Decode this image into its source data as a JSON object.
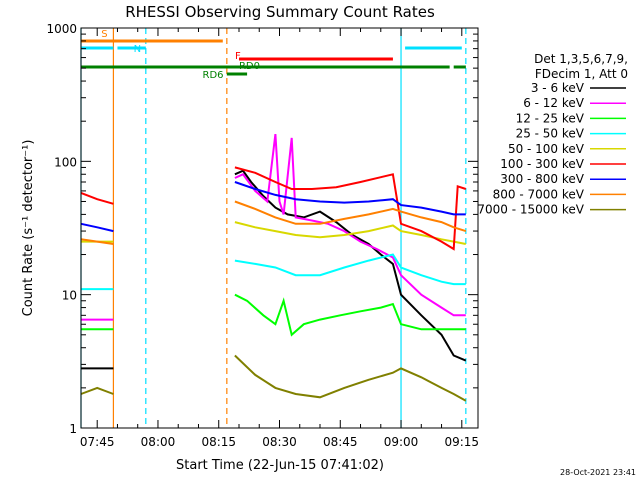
{
  "chart_data": {
    "type": "line",
    "title": "RHESSI Observing Summary Count Rates",
    "xlabel": "Start Time (22-Jun-15 07:41:02)",
    "ylabel": "Count Rate (s⁻¹ detector⁻¹)",
    "ylog": true,
    "ylim": [
      1,
      1000
    ],
    "xlim": [
      "07:41",
      "09:19"
    ],
    "x_ticks": [
      "07:45",
      "08:00",
      "08:15",
      "08:30",
      "08:45",
      "09:00",
      "09:15"
    ],
    "y_ticks": [
      "1",
      "10",
      "100",
      "1000"
    ],
    "legend_header": [
      "Det 1,3,5,6,7,9,",
      "FDecim 1, Att 0"
    ],
    "legend_position": "right",
    "timestamp": "28-Oct-2021 23:41",
    "flags": [
      {
        "label": "S",
        "color": "#ff8000",
        "start": "07:41",
        "end": "08:16"
      },
      {
        "label": "N",
        "color": "#00e0ff",
        "segments": [
          [
            "07:41",
            "07:49"
          ],
          [
            "07:50",
            "07:57"
          ],
          [
            "09:01",
            "09:15"
          ]
        ]
      },
      {
        "label": "F",
        "color": "#ff0000",
        "start": "08:20",
        "end": "08:58"
      },
      {
        "label": "RD0",
        "color": "#008000",
        "segments": [
          [
            "07:41",
            "09:00"
          ],
          [
            "09:00",
            "09:12"
          ],
          [
            "09:13",
            "09:16"
          ]
        ]
      },
      {
        "label": "RD6",
        "color": "#008000",
        "start": "08:17",
        "end": "08:22"
      }
    ],
    "vlines": [
      {
        "t": "07:41",
        "color": "#00e0ff",
        "style": "solid"
      },
      {
        "t": "07:49",
        "color": "#ff8000",
        "style": "solid"
      },
      {
        "t": "07:57",
        "color": "#00e0ff",
        "style": "dashed"
      },
      {
        "t": "08:17",
        "color": "#ff8000",
        "style": "dashed"
      },
      {
        "t": "09:00",
        "color": "#00e0ff",
        "style": "solid"
      },
      {
        "t": "09:16",
        "color": "#00e0ff",
        "style": "dashed"
      }
    ],
    "series": [
      {
        "name": "3 - 6 keV",
        "color": "#000000",
        "segments": [
          [
            [
              "07:41",
              2.8
            ],
            [
              "07:49",
              2.8
            ]
          ],
          [
            [
              "08:19",
              80
            ],
            [
              "08:21",
              85
            ],
            [
              "08:23",
              70
            ],
            [
              "08:26",
              55
            ],
            [
              "08:29",
              45
            ],
            [
              "08:32",
              40
            ],
            [
              "08:36",
              38
            ],
            [
              "08:40",
              42
            ],
            [
              "08:44",
              35
            ],
            [
              "08:48",
              28
            ],
            [
              "08:52",
              24
            ],
            [
              "08:55",
              20
            ],
            [
              "08:58",
              17
            ],
            [
              "09:00",
              10
            ],
            [
              "09:05",
              7
            ],
            [
              "09:10",
              5
            ],
            [
              "09:13",
              3.5
            ],
            [
              "09:16",
              3.2
            ]
          ]
        ]
      },
      {
        "name": "6 - 12 keV",
        "color": "#ff00ff",
        "segments": [
          [
            [
              "07:41",
              6.5
            ],
            [
              "07:49",
              6.5
            ]
          ],
          [
            [
              "08:19",
              75
            ],
            [
              "08:21",
              80
            ],
            [
              "08:24",
              60
            ],
            [
              "08:27",
              50
            ],
            [
              "08:29",
              160
            ],
            [
              "08:30",
              50
            ],
            [
              "08:31",
              40
            ],
            [
              "08:33",
              150
            ],
            [
              "08:34",
              38
            ],
            [
              "08:38",
              36
            ],
            [
              "08:42",
              34
            ],
            [
              "08:46",
              30
            ],
            [
              "08:50",
              25
            ],
            [
              "08:54",
              22
            ],
            [
              "08:58",
              19
            ],
            [
              "09:00",
              14
            ],
            [
              "09:05",
              10
            ],
            [
              "09:10",
              8
            ],
            [
              "09:13",
              7
            ],
            [
              "09:16",
              7
            ]
          ]
        ]
      },
      {
        "name": "12 - 25 keV",
        "color": "#00ff00",
        "segments": [
          [
            [
              "07:41",
              5.5
            ],
            [
              "07:49",
              5.5
            ]
          ],
          [
            [
              "08:19",
              10
            ],
            [
              "08:22",
              9
            ],
            [
              "08:26",
              7
            ],
            [
              "08:29",
              6
            ],
            [
              "08:31",
              9
            ],
            [
              "08:33",
              5
            ],
            [
              "08:36",
              6
            ],
            [
              "08:40",
              6.5
            ],
            [
              "08:45",
              7
            ],
            [
              "08:50",
              7.5
            ],
            [
              "08:55",
              8
            ],
            [
              "08:58",
              8.5
            ],
            [
              "09:00",
              6
            ],
            [
              "09:05",
              5.5
            ],
            [
              "09:10",
              5.5
            ],
            [
              "09:13",
              5.5
            ],
            [
              "09:16",
              5.5
            ]
          ]
        ]
      },
      {
        "name": "25 - 50 keV",
        "color": "#00ffff",
        "segments": [
          [
            [
              "07:41",
              11
            ],
            [
              "07:49",
              11
            ]
          ],
          [
            [
              "08:19",
              18
            ],
            [
              "08:24",
              17
            ],
            [
              "08:29",
              16
            ],
            [
              "08:34",
              14
            ],
            [
              "08:40",
              14
            ],
            [
              "08:46",
              16
            ],
            [
              "08:52",
              18
            ],
            [
              "08:58",
              20
            ],
            [
              "09:00",
              16
            ],
            [
              "09:05",
              14
            ],
            [
              "09:10",
              12.5
            ],
            [
              "09:13",
              12
            ],
            [
              "09:16",
              12
            ]
          ]
        ]
      },
      {
        "name": "50 - 100 keV",
        "color": "#d8d800",
        "segments": [
          [
            [
              "07:41",
              25
            ],
            [
              "07:49",
              25
            ]
          ],
          [
            [
              "08:19",
              35
            ],
            [
              "08:24",
              32
            ],
            [
              "08:29",
              30
            ],
            [
              "08:34",
              28
            ],
            [
              "08:40",
              27
            ],
            [
              "08:46",
              28
            ],
            [
              "08:52",
              30
            ],
            [
              "08:58",
              33
            ],
            [
              "09:00",
              30
            ],
            [
              "09:05",
              28
            ],
            [
              "09:10",
              26
            ],
            [
              "09:13",
              25
            ],
            [
              "09:16",
              24
            ]
          ]
        ]
      },
      {
        "name": "100 - 300 keV",
        "color": "#ff0000",
        "segments": [
          [
            [
              "07:41",
              58
            ],
            [
              "07:45",
              52
            ],
            [
              "07:49",
              48
            ]
          ],
          [
            [
              "08:19",
              90
            ],
            [
              "08:24",
              82
            ],
            [
              "08:29",
              70
            ],
            [
              "08:33",
              62
            ],
            [
              "08:38",
              62
            ],
            [
              "08:44",
              64
            ],
            [
              "08:50",
              70
            ],
            [
              "08:55",
              76
            ],
            [
              "08:58",
              80
            ],
            [
              "09:00",
              34
            ],
            [
              "09:05",
              30
            ],
            [
              "09:10",
              25
            ],
            [
              "09:13",
              22
            ],
            [
              "09:14",
              65
            ],
            [
              "09:16",
              62
            ]
          ]
        ]
      },
      {
        "name": "300 - 800 keV",
        "color": "#0000ff",
        "segments": [
          [
            [
              "07:41",
              34
            ],
            [
              "07:45",
              32
            ],
            [
              "07:49",
              30
            ]
          ],
          [
            [
              "08:19",
              70
            ],
            [
              "08:24",
              62
            ],
            [
              "08:29",
              56
            ],
            [
              "08:34",
              52
            ],
            [
              "08:40",
              50
            ],
            [
              "08:46",
              49
            ],
            [
              "08:52",
              50
            ],
            [
              "08:58",
              52
            ],
            [
              "09:00",
              47
            ],
            [
              "09:05",
              45
            ],
            [
              "09:10",
              42
            ],
            [
              "09:13",
              40
            ],
            [
              "09:16",
              40
            ]
          ]
        ]
      },
      {
        "name": "800 - 7000 keV",
        "color": "#ff8000",
        "segments": [
          [
            [
              "07:41",
              26
            ],
            [
              "07:45",
              25
            ],
            [
              "07:49",
              24
            ]
          ],
          [
            [
              "08:19",
              50
            ],
            [
              "08:24",
              44
            ],
            [
              "08:29",
              38
            ],
            [
              "08:34",
              34
            ],
            [
              "08:40",
              34
            ],
            [
              "08:46",
              37
            ],
            [
              "08:52",
              40
            ],
            [
              "08:58",
              44
            ],
            [
              "09:00",
              42
            ],
            [
              "09:05",
              38
            ],
            [
              "09:10",
              35
            ],
            [
              "09:13",
              32
            ],
            [
              "09:16",
              30
            ]
          ]
        ]
      },
      {
        "name": "7000 - 15000 keV",
        "color": "#808000",
        "segments": [
          [
            [
              "07:41",
              1.8
            ],
            [
              "07:45",
              2.0
            ],
            [
              "07:49",
              1.8
            ]
          ],
          [
            [
              "08:19",
              3.5
            ],
            [
              "08:24",
              2.5
            ],
            [
              "08:29",
              2.0
            ],
            [
              "08:34",
              1.8
            ],
            [
              "08:40",
              1.7
            ],
            [
              "08:46",
              2.0
            ],
            [
              "08:52",
              2.3
            ],
            [
              "08:58",
              2.6
            ],
            [
              "09:00",
              2.8
            ],
            [
              "09:05",
              2.4
            ],
            [
              "09:10",
              2.0
            ],
            [
              "09:13",
              1.8
            ],
            [
              "09:16",
              1.6
            ]
          ]
        ]
      }
    ]
  }
}
